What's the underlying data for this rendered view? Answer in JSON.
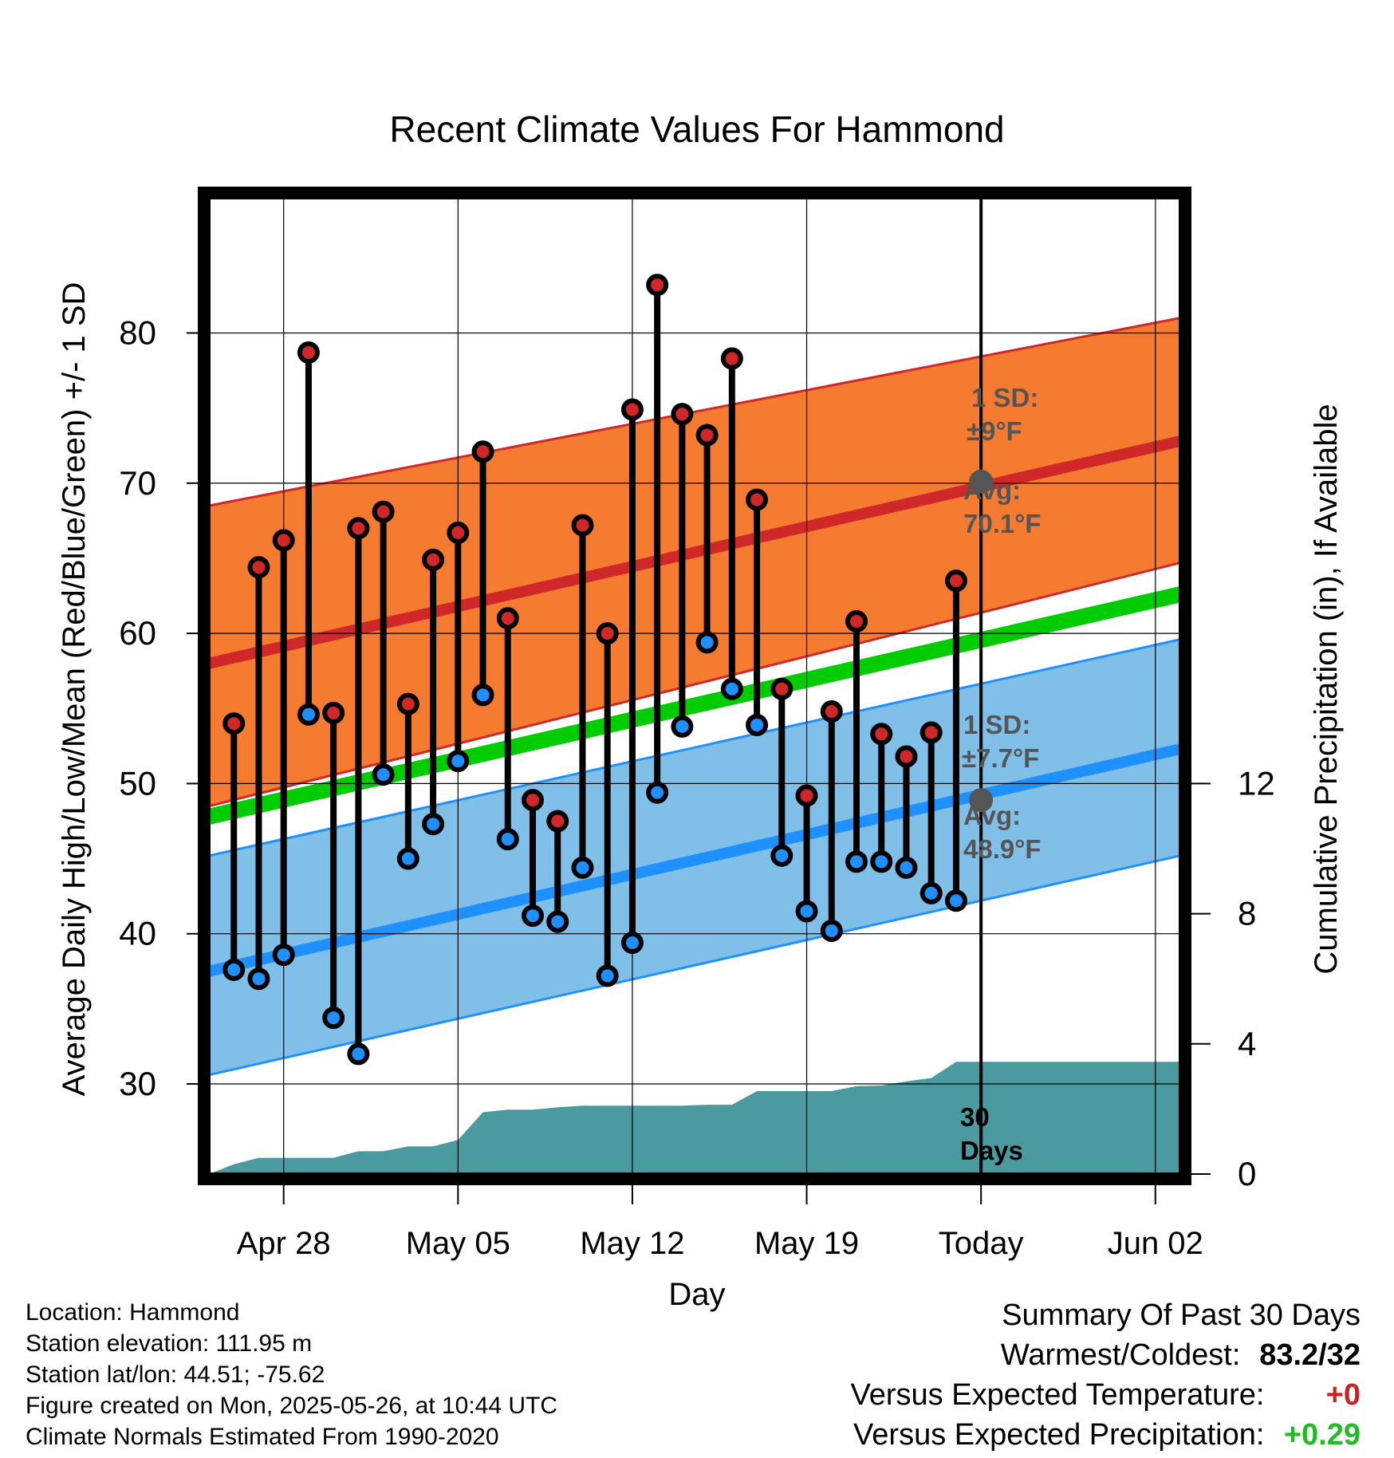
{
  "chart_data": {
    "type": "line",
    "title": "Recent Climate Values For Hammond",
    "xlabel": "Day",
    "ylabel": "Average Daily High/Low/Mean (Red/Blue/Green) +/- 1 SD",
    "y2label": "Cumulative Precipitation (in), If Available",
    "x_tick_labels": [
      "Apr 28",
      "May 05",
      "May 12",
      "May 19",
      "Today",
      "Jun 02"
    ],
    "x_tick_days": [
      "2025-04-28",
      "2025-05-05",
      "2025-05-12",
      "2025-05-19",
      "2025-05-26",
      "2025-06-02"
    ],
    "x_range": [
      "2025-04-25",
      "2025-06-03"
    ],
    "ylim": [
      24,
      89
    ],
    "y_ticks": [
      30,
      40,
      50,
      60,
      70,
      80
    ],
    "y2lim": [
      0,
      30
    ],
    "y2_ticks": [
      0,
      4,
      8,
      12
    ],
    "grid": true,
    "colors": {
      "high_band": "#f47b30",
      "high_line": "#d02828",
      "low_band": "#80c0e8",
      "low_line": "#1e90ff",
      "mean_line": "#00cc00",
      "precip": "#4a9aa0",
      "high_marker": "#d02828",
      "low_marker": "#1e90ff",
      "today_marker": "#555555"
    },
    "normals": {
      "dates": [
        "2025-04-25",
        "2025-06-03"
      ],
      "high_avg": [
        58.0,
        72.8
      ],
      "high_sd_upper": [
        68.5,
        81.0
      ],
      "high_sd_lower": [
        48.5,
        64.7
      ],
      "low_avg": [
        37.5,
        52.3
      ],
      "low_sd_upper": [
        45.2,
        59.6
      ],
      "low_sd_lower": [
        30.6,
        45.2
      ],
      "mean_avg": [
        47.8,
        62.6
      ]
    },
    "daily": {
      "dates": [
        "2025-04-26",
        "2025-04-27",
        "2025-04-28",
        "2025-04-29",
        "2025-04-30",
        "2025-05-01",
        "2025-05-02",
        "2025-05-03",
        "2025-05-04",
        "2025-05-05",
        "2025-05-06",
        "2025-05-07",
        "2025-05-08",
        "2025-05-09",
        "2025-05-10",
        "2025-05-11",
        "2025-05-12",
        "2025-05-13",
        "2025-05-14",
        "2025-05-15",
        "2025-05-16",
        "2025-05-17",
        "2025-05-18",
        "2025-05-19",
        "2025-05-20",
        "2025-05-21",
        "2025-05-22",
        "2025-05-23",
        "2025-05-24",
        "2025-05-25"
      ],
      "high": [
        54.0,
        64.4,
        66.2,
        78.7,
        54.7,
        67.0,
        68.1,
        55.3,
        64.9,
        66.7,
        72.1,
        61.0,
        48.9,
        47.5,
        67.2,
        60.0,
        74.9,
        83.2,
        74.6,
        73.2,
        78.3,
        68.9,
        56.3,
        49.2,
        54.8,
        60.8,
        53.3,
        51.8,
        53.4,
        63.5
      ],
      "low": [
        37.6,
        37.0,
        38.6,
        54.6,
        34.4,
        32.0,
        50.6,
        45.0,
        47.3,
        51.5,
        55.9,
        46.3,
        41.2,
        40.8,
        44.4,
        37.2,
        39.4,
        49.4,
        53.8,
        59.4,
        56.3,
        53.9,
        45.2,
        41.5,
        40.2,
        44.8,
        44.8,
        44.4,
        42.7,
        42.2
      ]
    },
    "precip_cumulative": {
      "dates": [
        "2025-04-25",
        "2025-04-26",
        "2025-04-27",
        "2025-04-28",
        "2025-04-29",
        "2025-04-30",
        "2025-05-01",
        "2025-05-02",
        "2025-05-03",
        "2025-05-04",
        "2025-05-05",
        "2025-05-06",
        "2025-05-07",
        "2025-05-08",
        "2025-05-09",
        "2025-05-10",
        "2025-05-11",
        "2025-05-12",
        "2025-05-13",
        "2025-05-14",
        "2025-05-15",
        "2025-05-16",
        "2025-05-17",
        "2025-05-18",
        "2025-05-19",
        "2025-05-20",
        "2025-05-21",
        "2025-05-22",
        "2025-05-23",
        "2025-05-24",
        "2025-05-25",
        "2025-05-26",
        "2025-06-03"
      ],
      "values": [
        0.0,
        0.3,
        0.5,
        0.5,
        0.5,
        0.5,
        0.7,
        0.7,
        0.85,
        0.85,
        1.05,
        1.9,
        1.98,
        1.98,
        2.05,
        2.1,
        2.1,
        2.1,
        2.1,
        2.1,
        2.13,
        2.13,
        2.55,
        2.55,
        2.55,
        2.55,
        2.7,
        2.72,
        2.85,
        2.95,
        3.45,
        3.45,
        3.45
      ]
    },
    "annotations": {
      "high_sd_label": "1 SD:",
      "high_sd_value": "±9°F",
      "high_avg_label": "Avg:",
      "high_avg_value": "70.1°F",
      "high_avg_today": 70.1,
      "low_sd_label": "1 SD:",
      "low_sd_value": "±7.7°F",
      "low_avg_label": "Avg:",
      "low_avg_value": "48.9°F",
      "low_avg_today": 48.9,
      "window_count": "30",
      "window_unit": "Days",
      "today_date": "2025-05-26"
    }
  },
  "footer": {
    "location": "Location: Hammond",
    "elevation": "Station elevation: 111.95 m",
    "latlon": "Station lat/lon: 44.51; -75.62",
    "created": "Figure created on Mon, 2025-05-26, at 10:44 UTC",
    "normals": "Climate Normals Estimated From 1990-2020"
  },
  "summary": {
    "title": "Summary Of Past 30 Days",
    "warmest_label": "Warmest/Coldest:",
    "warmest_value": "83.2/32",
    "temp_label": "Versus Expected Temperature:",
    "temp_value": "+0",
    "precip_label": "Versus Expected Precipitation:",
    "precip_value": "+0.29"
  }
}
